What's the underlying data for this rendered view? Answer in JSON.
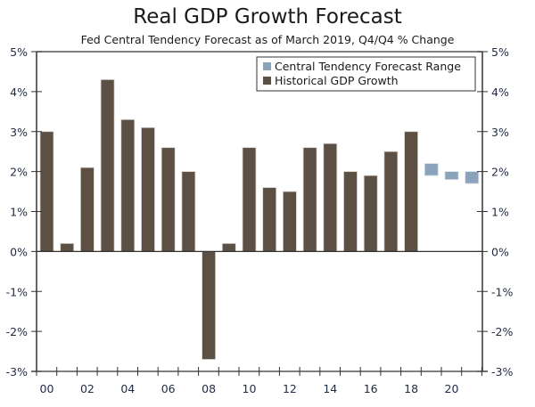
{
  "chart_data": {
    "type": "bar",
    "title": "Real GDP Growth Forecast",
    "subtitle": "Fed Central Tendency Forecast as of March 2019, Q4/Q4 % Change",
    "xlabel": "",
    "ylabel": "",
    "ylim": [
      -3,
      5
    ],
    "yticks": [
      5,
      4,
      3,
      2,
      1,
      0,
      -1,
      -2,
      -3
    ],
    "ytick_labels": [
      "5%",
      "4%",
      "3%",
      "2%",
      "1%",
      "0%",
      "-1%",
      "-2%",
      "-3%"
    ],
    "xtick_labels": [
      "00",
      "02",
      "04",
      "06",
      "08",
      "10",
      "12",
      "14",
      "16",
      "18",
      "20"
    ],
    "grid": false,
    "legend_position": "top-right",
    "legend": [
      {
        "name": "Central Tendency Forecast Range",
        "color": "#8aa3bb"
      },
      {
        "name": "Historical GDP Growth",
        "color": "#5c4f44"
      }
    ],
    "series": [
      {
        "name": "Historical GDP Growth",
        "color": "#5c4f44",
        "x": [
          2000,
          2001,
          2002,
          2003,
          2004,
          2005,
          2006,
          2007,
          2008,
          2009,
          2010,
          2011,
          2012,
          2013,
          2014,
          2015,
          2016,
          2017,
          2018
        ],
        "values": [
          3.0,
          0.2,
          2.1,
          4.3,
          3.3,
          3.1,
          2.6,
          2.0,
          -2.7,
          0.2,
          2.6,
          1.6,
          1.5,
          2.6,
          2.7,
          2.0,
          1.9,
          2.5,
          3.0
        ]
      },
      {
        "name": "Central Tendency Forecast Range",
        "color": "#8aa3bb",
        "x": [
          2019,
          2020,
          2021
        ],
        "low": [
          1.9,
          1.8,
          1.7
        ],
        "high": [
          2.2,
          2.0,
          2.0
        ]
      }
    ]
  }
}
